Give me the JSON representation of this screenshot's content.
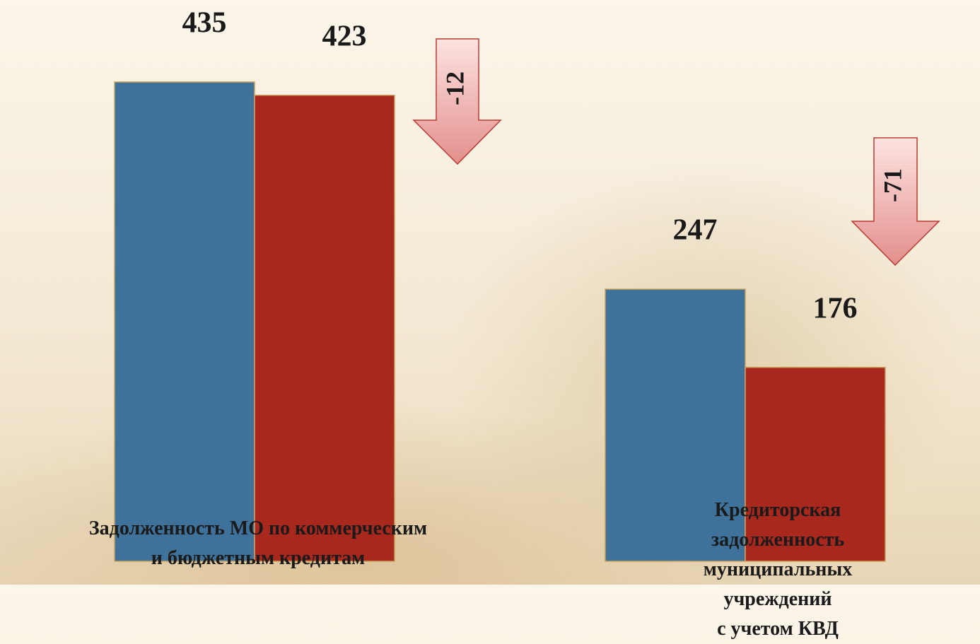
{
  "chart_data": {
    "type": "bar",
    "categories": [
      "Задолженность МО по коммерческим\nи бюджетным кредитам",
      "Кредиторская задолженность\nмуниципальных учреждений\nс учетом КВД"
    ],
    "series": [
      {
        "color": "#3f729b",
        "values": [
          435,
          247
        ]
      },
      {
        "color": "#a8281e",
        "values": [
          423,
          176
        ]
      }
    ],
    "annotations": [
      "-12",
      "-71"
    ]
  }
}
